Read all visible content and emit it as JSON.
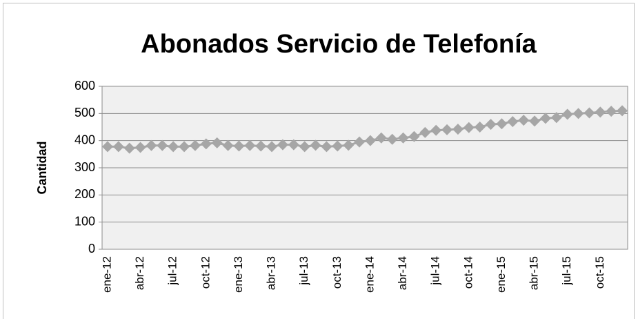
{
  "chart_data": {
    "type": "line",
    "title": "Abonados Servicio de Telefonía",
    "y_label": "Cantidad",
    "categories": [
      "ene-12",
      null,
      null,
      "abr-12",
      null,
      null,
      "jul-12",
      null,
      null,
      "oct-12",
      null,
      null,
      "ene-13",
      null,
      null,
      "abr-13",
      null,
      null,
      "jul-13",
      null,
      null,
      "oct-13",
      null,
      null,
      "ene-14",
      null,
      null,
      "abr-14",
      null,
      null,
      "jul-14",
      null,
      null,
      "oct-14",
      null,
      null,
      "ene-15",
      null,
      null,
      "abr-15",
      null,
      null,
      "jul-15",
      null,
      null,
      "oct-15",
      null,
      null
    ],
    "series": [
      {
        "name": "Abonados",
        "color": "#a6a6a6",
        "values": [
          378,
          378,
          372,
          375,
          382,
          382,
          378,
          378,
          382,
          388,
          392,
          382,
          380,
          382,
          380,
          378,
          385,
          385,
          378,
          383,
          378,
          380,
          383,
          395,
          400,
          410,
          405,
          410,
          415,
          430,
          438,
          440,
          442,
          448,
          450,
          460,
          462,
          470,
          475,
          472,
          482,
          485,
          497,
          500,
          502,
          505,
          508,
          510
        ]
      }
    ],
    "ylim": [
      0,
      600
    ],
    "yticks": [
      0,
      100,
      200,
      300,
      400,
      500,
      600
    ],
    "grid": true,
    "legend": false
  }
}
